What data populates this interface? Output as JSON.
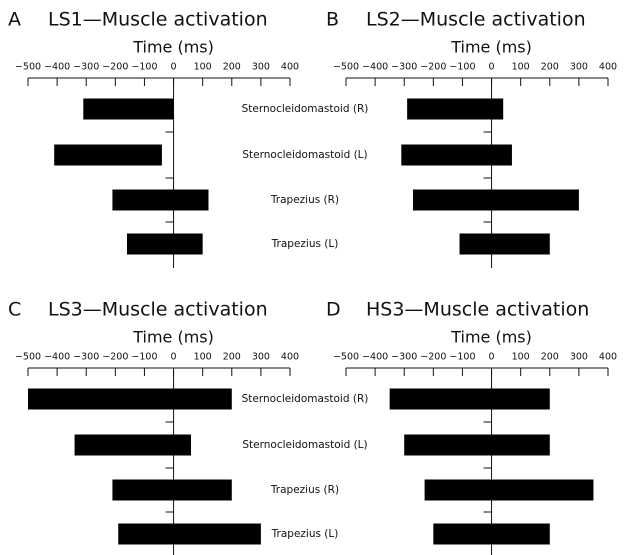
{
  "chart_data": [
    {
      "type": "bar",
      "panel": "A",
      "title": "LS1—Muscle activation",
      "xlabel": "Time (ms)",
      "categories": [
        "Sternocleidomastoid (R)",
        "Sternocleidomastoid (L)",
        "Trapezius (R)",
        "Trapezius (L)"
      ],
      "values": [
        [
          -310,
          0
        ],
        [
          -410,
          -40
        ],
        [
          -210,
          120
        ],
        [
          -160,
          100
        ]
      ],
      "color": "#000000",
      "xlim": [
        -500,
        400
      ],
      "xticks": [
        {
          "value": -500,
          "label": "−500"
        },
        {
          "value": -400,
          "label": "−400"
        },
        {
          "value": -300,
          "label": "−300"
        },
        {
          "value": -200,
          "label": "−200"
        },
        {
          "value": -100,
          "label": "−100"
        },
        0,
        100,
        200,
        300,
        400
      ]
    },
    {
      "type": "bar",
      "panel": "B",
      "title": "LS2—Muscle activation",
      "xlabel": "Time (ms)",
      "values": [
        [
          -290,
          40
        ],
        [
          -310,
          70
        ],
        [
          -270,
          300
        ],
        [
          -110,
          200
        ]
      ],
      "color": "#000000",
      "xlim": [
        -500,
        400
      ],
      "xticks": [
        {
          "value": -500,
          "label": "−500"
        },
        {
          "value": -400,
          "label": "−400"
        },
        {
          "value": -300,
          "label": "−300"
        },
        {
          "value": -200,
          "label": "−200"
        },
        {
          "value": -100,
          "label": "−100"
        },
        0,
        100,
        200,
        300,
        400
      ]
    },
    {
      "type": "bar",
      "panel": "C",
      "title": "LS3—Muscle activation",
      "xlabel": "Time (ms)",
      "categories": [
        "Sternocleidomastoid (R)",
        "Sternocleidomastoid (L)",
        "Trapezius (R)",
        "Trapezius (L)"
      ],
      "values": [
        [
          -500,
          200
        ],
        [
          -340,
          60
        ],
        [
          -210,
          200
        ],
        [
          -190,
          300
        ]
      ],
      "color": "#000000",
      "xlim": [
        -500,
        400
      ],
      "xticks": [
        {
          "value": -500,
          "label": "−500"
        },
        {
          "value": -400,
          "label": "−400"
        },
        {
          "value": -300,
          "label": "−300"
        },
        {
          "value": -200,
          "label": "−200"
        },
        {
          "value": -100,
          "label": "−100"
        },
        0,
        100,
        200,
        300,
        400
      ]
    },
    {
      "type": "bar",
      "panel": "D",
      "title": "HS3—Muscle activation",
      "xlabel": "Time (ms)",
      "values": [
        [
          -350,
          200
        ],
        [
          -300,
          200
        ],
        [
          -230,
          350
        ],
        [
          -200,
          200
        ]
      ],
      "color": "#000000",
      "xlim": [
        -500,
        400
      ],
      "xticks": [
        {
          "value": -500,
          "label": "−500"
        },
        {
          "value": -400,
          "label": "−400"
        },
        {
          "value": -300,
          "label": "−300"
        },
        {
          "value": -200,
          "label": "−200"
        },
        {
          "value": -100,
          "label": "−100"
        },
        0,
        100,
        200,
        300,
        400
      ]
    }
  ]
}
